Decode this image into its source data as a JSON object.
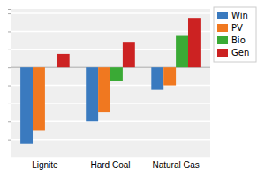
{
  "chart_data": {
    "type": "bar",
    "categories": [
      "Lignite",
      "Hard Coal",
      "Natural Gas"
    ],
    "series": [
      {
        "name": "Win",
        "color": "#3a7abf",
        "values": [
          -1.7,
          -1.2,
          -0.5
        ]
      },
      {
        "name": "PV",
        "color": "#f07820",
        "values": [
          -1.4,
          -1.0,
          -0.4
        ]
      },
      {
        "name": "Bio",
        "color": "#3aaa35",
        "values": [
          0.0,
          -0.3,
          0.7
        ]
      },
      {
        "name": "Gen",
        "color": "#cc2222",
        "values": [
          0.3,
          0.55,
          1.1
        ]
      }
    ],
    "ylim": [
      -2.0,
      1.3
    ],
    "yticks": [
      -2.0,
      -1.6,
      -1.2,
      -0.8,
      -0.4,
      0,
      0.4,
      0.8,
      1.2
    ],
    "grid": true,
    "legend": "right",
    "tick_labels": "x"
  }
}
